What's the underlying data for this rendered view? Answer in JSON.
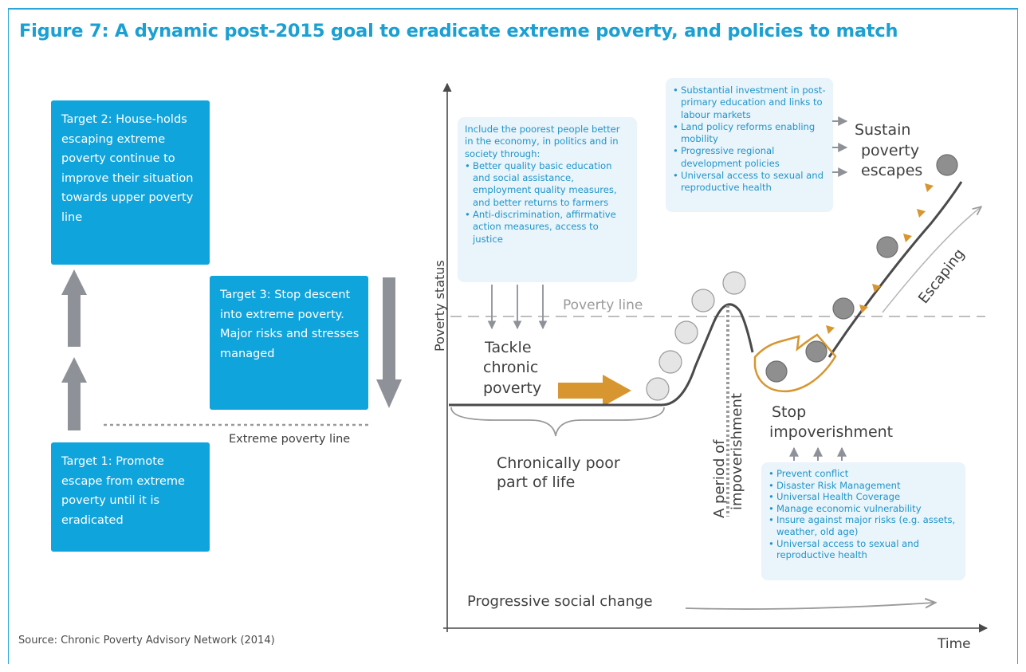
{
  "title": "Figure 7: A dynamic post-2015 goal to eradicate extreme poverty, and policies to match",
  "source": "Source: Chronic Poverty Advisory Network (2014)",
  "targets": {
    "target2": "Target 2: House-holds escaping extreme poverty continue to improve their situation towards upper poverty line",
    "target3": "Target 3: Stop descent into extreme poverty. Major risks and stresses managed",
    "target1": "Target 1: Promote escape from extreme poverty until it is eradicated"
  },
  "extreme_poverty_line": "Extreme poverty line",
  "include_box": {
    "intro": "Include the poorest people better in the economy, in politics and in society through:",
    "items": [
      "Better quality basic education and social assistance, employment quality measures, and better returns to farmers",
      "Anti-discrimination, affirmative action measures, access to justice"
    ]
  },
  "sustain_box": {
    "items": [
      "Substantial investment in post-primary education and links to labour markets",
      "Land policy reforms enabling mobility",
      "Progressive regional development policies",
      "Universal access to sexual and reproductive health"
    ]
  },
  "stop_box": {
    "items": [
      "Prevent conflict",
      "Disaster Risk Management",
      "Universal Health Coverage",
      "Manage economic vulnerability",
      "Insure against major risks (e.g. assets, weather, old age)",
      "Universal access to sexual and reproductive health"
    ]
  },
  "labels": {
    "poverty_status": "Poverty status",
    "poverty_line": "Poverty line",
    "tackle_1": "Tackle",
    "tackle_2": "chronic",
    "tackle_3": "poverty",
    "chronic_1": "Chronically poor",
    "chronic_2": "part of life",
    "period_1": "A period of",
    "period_2": "impoverishment",
    "stop_1": "Stop",
    "stop_2": "impoverishment",
    "sustain_1": "Sustain",
    "sustain_2": "poverty",
    "sustain_3": "escapes",
    "escaping": "Escaping",
    "social_change": "Progressive social change",
    "time": "Time"
  },
  "colors": {
    "accent_blue": "#10a4dc",
    "title_blue": "#1aa0d2",
    "orange": "#d7962f",
    "dark_line": "#4a4a4a",
    "grey_arrow": "#8e9298"
  }
}
